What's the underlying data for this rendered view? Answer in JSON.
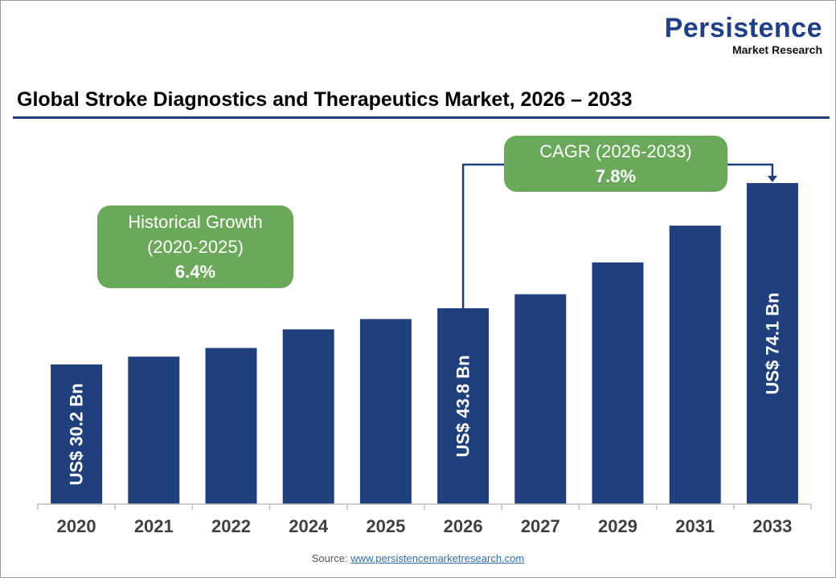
{
  "logo": {
    "line1": "Persistence",
    "line2": "Market Research"
  },
  "title": "Global Stroke Diagnostics and Therapeutics Market, 2026 – 2033",
  "source": {
    "label": "Source:",
    "link": "www.persistencemarketresearch.com"
  },
  "annotations": {
    "historical": {
      "line1": "Historical Growth",
      "line2": "(2020-2025)",
      "value": "6.4%"
    },
    "cagr": {
      "line1": "CAGR (2026-2033)",
      "value": "7.8%"
    }
  },
  "colors": {
    "bar": "#20407d",
    "box": "#6aa95a",
    "rule": "#1f3e7a"
  },
  "chart_data": {
    "type": "bar",
    "title": "Global Stroke Diagnostics and Therapeutics Market, 2026 – 2033",
    "categories": [
      "2020",
      "2021",
      "2022",
      "2024",
      "2025",
      "2026",
      "2027",
      "2029",
      "2031",
      "2033"
    ],
    "values": [
      30.2,
      32.1,
      34.2,
      38.7,
      41.2,
      43.8,
      47.2,
      54.9,
      63.8,
      74.1
    ],
    "unit": "US$ Bn",
    "data_labels": {
      "2020": "US$ 30.2 Bn",
      "2026": "US$ 43.8 Bn",
      "2033": "US$ 74.1 Bn"
    },
    "xlabel": "",
    "ylabel": "",
    "grid": false,
    "legend": "none"
  }
}
